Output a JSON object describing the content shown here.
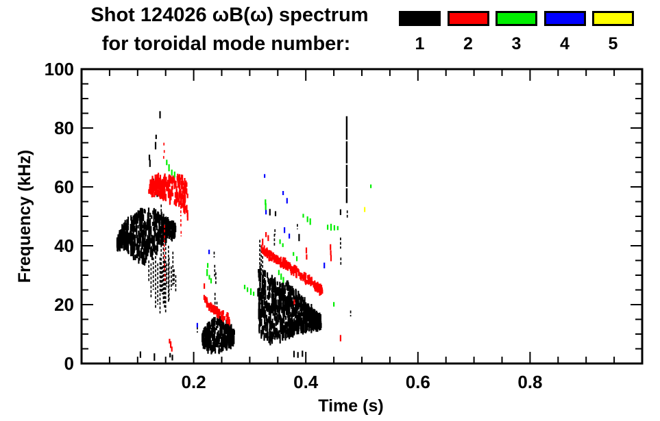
{
  "figure": {
    "title_line1": "Shot 124026 ωB(ω) spectrum",
    "title_line2": "for toroidal mode number:",
    "background": "#ffffff",
    "axis_color": "#000000"
  },
  "chart_data": {
    "type": "scatter",
    "title": "Shot 124026 ωB(ω) spectrum for toroidal mode number: 1 2 3 4 5",
    "xlabel": "Time (s)",
    "ylabel": "Frequency (kHz)",
    "xlim": [
      0,
      1.0
    ],
    "ylim": [
      0,
      100
    ],
    "grid": false,
    "legend_position": "top-right",
    "x_major_ticks": [
      0.2,
      0.4,
      0.6,
      0.8
    ],
    "x_tick_labels": [
      "0.2",
      "0.4",
      "0.6",
      "0.8"
    ],
    "x_minor_step": 0.05,
    "y_major_ticks": [
      0,
      20,
      40,
      60,
      80,
      100
    ],
    "y_tick_labels": [
      "0",
      "20",
      "40",
      "60",
      "80",
      "100"
    ],
    "y_minor_step": 5,
    "modes": [
      {
        "n": 1,
        "label": "1",
        "color": "#000000"
      },
      {
        "n": 2,
        "label": "2",
        "color": "#ff0000"
      },
      {
        "n": 3,
        "label": "3",
        "color": "#00ee00"
      },
      {
        "n": 4,
        "label": "4",
        "color": "#0000ff"
      },
      {
        "n": 5,
        "label": "5",
        "color": "#ffff00"
      }
    ],
    "features": [
      {
        "kind": "band",
        "mode": 1,
        "t": [
          0.063,
          0.168
        ],
        "top": [
          [
            0.063,
            41.5
          ],
          [
            0.075,
            47
          ],
          [
            0.09,
            50
          ],
          [
            0.11,
            52.5
          ],
          [
            0.128,
            52
          ],
          [
            0.145,
            50
          ],
          [
            0.168,
            46.5
          ]
        ],
        "bot": [
          [
            0.063,
            39
          ],
          [
            0.075,
            40
          ],
          [
            0.09,
            36
          ],
          [
            0.11,
            34
          ],
          [
            0.128,
            37
          ],
          [
            0.145,
            41.5
          ],
          [
            0.168,
            43.5
          ]
        ],
        "n": 520,
        "len": [
          1.2,
          3.5
        ],
        "striate": 26
      },
      {
        "kind": "cols",
        "mode": 1,
        "dash": true,
        "segs": [
          [
            0.12,
            35,
            27.5
          ],
          [
            0.124,
            34,
            22
          ],
          [
            0.128,
            36,
            25
          ],
          [
            0.132,
            38,
            18.5
          ],
          [
            0.136,
            34,
            20
          ],
          [
            0.14,
            36,
            17
          ],
          [
            0.142,
            54,
            24
          ],
          [
            0.144,
            33,
            23.5
          ],
          [
            0.146,
            50,
            20
          ],
          [
            0.148,
            35,
            19
          ],
          [
            0.15,
            44,
            17
          ],
          [
            0.152,
            34,
            26
          ],
          [
            0.155,
            40,
            21
          ],
          [
            0.156,
            36,
            21.5
          ],
          [
            0.16,
            33,
            25
          ],
          [
            0.163,
            38,
            26
          ],
          [
            0.165,
            32,
            27
          ],
          [
            0.168,
            30,
            24
          ]
        ]
      },
      {
        "kind": "specks",
        "mode": 1,
        "pts": [
          [
            0.14,
            84.5
          ],
          [
            0.133,
            77
          ],
          [
            0.132,
            74
          ],
          [
            0.121,
            70
          ],
          [
            0.122,
            68
          ],
          [
            0.128,
            62
          ],
          [
            0.135,
            57.5
          ],
          [
            0.105,
            3
          ],
          [
            0.13,
            2.2
          ],
          [
            0.158,
            2.8
          ],
          [
            0.162,
            2
          ],
          [
            0.336,
            51.4
          ],
          [
            0.346,
            50.9
          ],
          [
            0.388,
            42.8
          ],
          [
            0.462,
            51.4
          ],
          [
            0.379,
            3.2
          ],
          [
            0.386,
            2.9
          ],
          [
            0.394,
            3.3
          ]
        ],
        "len": [
          1.2,
          2.6
        ]
      },
      {
        "kind": "band",
        "mode": 1,
        "t": [
          0.215,
          0.272
        ],
        "top": [
          [
            0.215,
            9.5
          ],
          [
            0.225,
            13
          ],
          [
            0.235,
            15.5
          ],
          [
            0.245,
            16
          ],
          [
            0.255,
            14
          ],
          [
            0.265,
            13
          ],
          [
            0.272,
            11
          ]
        ],
        "bot": [
          [
            0.215,
            6.5
          ],
          [
            0.225,
            5
          ],
          [
            0.235,
            3.5
          ],
          [
            0.245,
            4
          ],
          [
            0.255,
            5
          ],
          [
            0.265,
            6
          ],
          [
            0.272,
            7.5
          ]
        ],
        "n": 300,
        "len": [
          1.2,
          3.2
        ],
        "striate": 14
      },
      {
        "kind": "cols",
        "mode": 1,
        "dash": true,
        "segs": [
          [
            0.2065,
            12.5,
            10.5
          ],
          [
            0.2365,
            38,
            36
          ],
          [
            0.2375,
            33.5,
            29
          ],
          [
            0.2395,
            31,
            27
          ],
          [
            0.238,
            24,
            17
          ],
          [
            0.2415,
            21,
            16
          ]
        ]
      },
      {
        "kind": "band",
        "mode": 1,
        "t": [
          0.315,
          0.427
        ],
        "top": [
          [
            0.315,
            33
          ],
          [
            0.325,
            31
          ],
          [
            0.34,
            29
          ],
          [
            0.355,
            28
          ],
          [
            0.37,
            26.5
          ],
          [
            0.385,
            23.5
          ],
          [
            0.4,
            21
          ],
          [
            0.415,
            17.5
          ],
          [
            0.427,
            15.5
          ]
        ],
        "bot": [
          [
            0.315,
            12
          ],
          [
            0.325,
            8
          ],
          [
            0.34,
            7
          ],
          [
            0.355,
            8
          ],
          [
            0.37,
            9.5
          ],
          [
            0.385,
            11
          ],
          [
            0.4,
            11.5
          ],
          [
            0.415,
            12
          ],
          [
            0.427,
            12.5
          ]
        ],
        "n": 680,
        "len": [
          1.2,
          3.5
        ],
        "striate": 24
      },
      {
        "kind": "cols",
        "mode": 1,
        "dash": true,
        "segs": [
          [
            0.318,
            42,
            33
          ],
          [
            0.3205,
            40,
            30
          ],
          [
            0.323,
            36.5,
            31
          ],
          [
            0.344,
            44,
            39.5
          ],
          [
            0.345,
            45.6,
            43.7
          ],
          [
            0.385,
            47.4,
            45.6
          ],
          [
            0.462,
            42.8,
            39
          ],
          [
            0.4625,
            36,
            33
          ],
          [
            0.474,
            52,
            49.3
          ],
          [
            0.48,
            18,
            16
          ]
        ]
      },
      {
        "kind": "cols",
        "mode": 1,
        "w": 2.4,
        "segs": [
          [
            0.473,
            84,
            76
          ],
          [
            0.473,
            75.5,
            68
          ],
          [
            0.473,
            67.5,
            60
          ],
          [
            0.473,
            59.5,
            54.5
          ]
        ]
      },
      {
        "kind": "band",
        "mode": 2,
        "t": [
          0.12,
          0.19
        ],
        "top": [
          [
            0.12,
            61.5
          ],
          [
            0.135,
            63.5
          ],
          [
            0.15,
            64
          ],
          [
            0.165,
            63
          ],
          [
            0.178,
            64
          ],
          [
            0.19,
            61.5
          ]
        ],
        "bot": [
          [
            0.12,
            57
          ],
          [
            0.135,
            57.5
          ],
          [
            0.15,
            56
          ],
          [
            0.165,
            54
          ],
          [
            0.178,
            53.5
          ],
          [
            0.19,
            49
          ]
        ],
        "n": 230,
        "len": [
          1.2,
          3
        ],
        "striate": 16
      },
      {
        "kind": "cols",
        "mode": 2,
        "dash": true,
        "segs": [
          [
            0.147,
            75,
            73.5
          ],
          [
            0.1475,
            72.5,
            71
          ],
          [
            0.1465,
            70.5,
            69.3
          ],
          [
            0.148,
            47,
            44.5
          ],
          [
            0.148,
            43.5,
            41
          ],
          [
            0.1475,
            40.5,
            38
          ],
          [
            0.1478,
            37,
            35
          ],
          [
            0.1482,
            34,
            31.5
          ],
          [
            0.1486,
            30.5,
            28
          ],
          [
            0.177,
            53.5,
            50
          ],
          [
            0.1772,
            49,
            46
          ],
          [
            0.1776,
            45,
            43.2
          ]
        ]
      },
      {
        "kind": "specks",
        "mode": 2,
        "pts": [
          [
            0.157,
            7.6
          ],
          [
            0.159,
            6.4
          ],
          [
            0.161,
            4.9
          ],
          [
            0.219,
            26.3
          ],
          [
            0.329,
            43.8
          ],
          [
            0.333,
            42.6
          ],
          [
            0.323,
            41.3
          ],
          [
            0.3795,
            20.9
          ],
          [
            0.462,
            8.6
          ],
          [
            0.401,
            38.4
          ],
          [
            0.4015,
            36.2
          ],
          [
            0.444,
            39.5
          ],
          [
            0.4445,
            37.6
          ],
          [
            0.445,
            35.8
          ],
          [
            0.425,
            26.2
          ],
          [
            0.429,
            24.8
          ]
        ],
        "len": [
          1.2,
          2.4
        ]
      },
      {
        "kind": "chirp",
        "mode": 2,
        "c": [
          [
            0.219,
            21.8
          ],
          [
            0.228,
            19.5
          ],
          [
            0.238,
            17.8
          ],
          [
            0.25,
            16.5
          ],
          [
            0.264,
            15
          ]
        ],
        "th": 2.2,
        "n": 80,
        "len": [
          1,
          2.2
        ]
      },
      {
        "kind": "chirp",
        "mode": 2,
        "c": [
          [
            0.321,
            39
          ],
          [
            0.335,
            36.8
          ],
          [
            0.35,
            35.2
          ],
          [
            0.362,
            34
          ],
          [
            0.375,
            32.2
          ],
          [
            0.39,
            30.2
          ],
          [
            0.403,
            28.4
          ],
          [
            0.416,
            26.6
          ],
          [
            0.43,
            24.4
          ]
        ],
        "th": 2.4,
        "n": 200,
        "len": [
          1,
          2.4
        ]
      },
      {
        "kind": "specks",
        "mode": 3,
        "pts": [
          [
            0.152,
            68.3
          ],
          [
            0.156,
            66.5
          ],
          [
            0.161,
            64.9
          ],
          [
            0.166,
            64.2
          ],
          [
            0.224,
            30.9
          ],
          [
            0.228,
            29.3
          ],
          [
            0.231,
            28.1
          ],
          [
            0.225,
            33.3
          ],
          [
            0.291,
            26
          ],
          [
            0.296,
            25.1
          ],
          [
            0.302,
            24.4
          ],
          [
            0.307,
            23.7
          ],
          [
            0.352,
            30.9
          ],
          [
            0.356,
            29.5
          ],
          [
            0.36,
            28.4
          ],
          [
            0.354,
            41.4
          ],
          [
            0.359,
            40.2
          ],
          [
            0.328,
            54.8
          ],
          [
            0.3285,
            53.3
          ],
          [
            0.378,
            37.2
          ],
          [
            0.384,
            35.6
          ],
          [
            0.3955,
            50.2
          ],
          [
            0.403,
            49
          ],
          [
            0.408,
            48.2
          ],
          [
            0.439,
            46.3
          ],
          [
            0.445,
            46.3
          ],
          [
            0.451,
            46.1
          ],
          [
            0.457,
            46
          ],
          [
            0.45,
            20.1
          ],
          [
            0.516,
            60.2
          ]
        ],
        "len": [
          1.2,
          2.4
        ]
      },
      {
        "kind": "specks",
        "mode": 4,
        "pts": [
          [
            0.2065,
            13
          ],
          [
            0.2275,
            37.9
          ],
          [
            0.3265,
            63.7
          ],
          [
            0.3595,
            57.9
          ],
          [
            0.3665,
            55.3
          ],
          [
            0.329,
            51.4
          ],
          [
            0.362,
            45.3
          ],
          [
            0.3705,
            43.3
          ],
          [
            0.433,
            33.3
          ]
        ],
        "len": [
          1.2,
          2
        ]
      },
      {
        "kind": "specks",
        "mode": 5,
        "pts": [
          [
            0.505,
            52.3
          ]
        ],
        "len": [
          1.5,
          1.8
        ]
      }
    ]
  }
}
